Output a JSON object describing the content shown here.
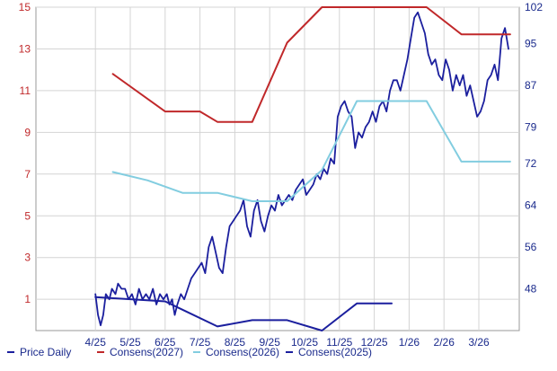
{
  "chart_data": {
    "type": "line",
    "x_ticks": [
      "4/25",
      "5/25",
      "6/25",
      "7/25",
      "8/25",
      "9/25",
      "10/25",
      "11/25",
      "12/25",
      "1/26",
      "2/26",
      "3/26"
    ],
    "y_left": {
      "ticks": [
        1,
        3,
        5,
        7,
        9,
        11,
        13,
        15
      ],
      "range": [
        -0.5,
        15
      ]
    },
    "y_right": {
      "ticks": [
        48,
        56,
        64,
        72,
        79,
        87,
        95,
        102
      ],
      "range": [
        40,
        102
      ]
    },
    "series": [
      {
        "name": "Price Daily",
        "axis": "right",
        "color": "#1b1f9e",
        "points": [
          [
            3.0,
            47
          ],
          [
            3.15,
            43
          ],
          [
            3.3,
            41
          ],
          [
            3.45,
            43
          ],
          [
            3.6,
            47
          ],
          [
            3.8,
            46
          ],
          [
            3.95,
            48
          ],
          [
            4.15,
            47
          ],
          [
            4.3,
            49
          ],
          [
            4.5,
            48
          ],
          [
            4.7,
            48
          ],
          [
            4.9,
            46
          ],
          [
            5.1,
            47
          ],
          [
            5.3,
            45
          ],
          [
            5.5,
            48
          ],
          [
            5.7,
            46
          ],
          [
            5.9,
            47
          ],
          [
            6.1,
            46
          ],
          [
            6.3,
            48
          ],
          [
            6.5,
            45
          ],
          [
            6.7,
            47
          ],
          [
            6.9,
            46
          ],
          [
            7.1,
            47
          ],
          [
            7.25,
            45
          ],
          [
            7.4,
            46
          ],
          [
            7.55,
            43
          ],
          [
            7.7,
            45
          ],
          [
            7.9,
            47
          ],
          [
            8.1,
            46
          ],
          [
            8.3,
            48
          ],
          [
            8.5,
            50
          ],
          [
            8.7,
            51
          ],
          [
            8.9,
            52
          ],
          [
            9.1,
            53
          ],
          [
            9.3,
            51
          ],
          [
            9.5,
            56
          ],
          [
            9.7,
            58
          ],
          [
            9.9,
            55
          ],
          [
            10.1,
            52
          ],
          [
            10.3,
            51
          ],
          [
            10.5,
            56
          ],
          [
            10.7,
            60
          ],
          [
            10.9,
            61
          ],
          [
            11.1,
            62
          ],
          [
            11.3,
            63
          ],
          [
            11.5,
            65
          ],
          [
            11.7,
            60
          ],
          [
            11.9,
            58
          ],
          [
            12.1,
            63
          ],
          [
            12.3,
            65
          ],
          [
            12.5,
            61
          ],
          [
            12.7,
            59
          ],
          [
            12.9,
            62
          ],
          [
            13.1,
            64
          ],
          [
            13.3,
            63
          ],
          [
            13.5,
            66
          ],
          [
            13.7,
            64
          ],
          [
            13.9,
            65
          ],
          [
            14.1,
            66
          ],
          [
            14.3,
            65
          ],
          [
            14.5,
            67
          ],
          [
            14.7,
            68
          ],
          [
            14.9,
            69
          ],
          [
            15.1,
            66
          ],
          [
            15.3,
            67
          ],
          [
            15.5,
            68
          ],
          [
            15.7,
            70
          ],
          [
            15.9,
            69
          ],
          [
            16.1,
            71
          ],
          [
            16.3,
            70
          ],
          [
            16.5,
            73
          ],
          [
            16.7,
            72
          ],
          [
            16.9,
            81
          ],
          [
            17.1,
            83
          ],
          [
            17.3,
            84
          ],
          [
            17.5,
            82
          ],
          [
            17.7,
            81
          ],
          [
            17.9,
            75
          ],
          [
            18.1,
            78
          ],
          [
            18.3,
            77
          ],
          [
            18.5,
            79
          ],
          [
            18.7,
            80
          ],
          [
            18.9,
            82
          ],
          [
            19.1,
            80
          ],
          [
            19.3,
            83
          ],
          [
            19.5,
            84
          ],
          [
            19.7,
            82
          ],
          [
            19.9,
            86
          ],
          [
            20.1,
            88
          ],
          [
            20.3,
            88
          ],
          [
            20.5,
            86
          ],
          [
            20.7,
            89
          ],
          [
            20.9,
            92
          ],
          [
            21.1,
            96
          ],
          [
            21.3,
            100
          ],
          [
            21.5,
            101
          ],
          [
            21.7,
            99
          ],
          [
            21.9,
            97
          ],
          [
            22.1,
            93
          ],
          [
            22.3,
            91
          ],
          [
            22.5,
            92
          ],
          [
            22.7,
            89
          ],
          [
            22.9,
            88
          ],
          [
            23.1,
            92
          ],
          [
            23.3,
            90
          ],
          [
            23.5,
            86
          ],
          [
            23.7,
            89
          ],
          [
            23.9,
            87
          ],
          [
            24.1,
            89
          ],
          [
            24.3,
            85
          ],
          [
            24.5,
            87
          ],
          [
            24.7,
            84
          ],
          [
            24.9,
            81
          ],
          [
            25.1,
            82
          ],
          [
            25.3,
            84
          ],
          [
            25.5,
            88
          ],
          [
            25.7,
            89
          ],
          [
            25.9,
            91
          ],
          [
            26.1,
            88
          ],
          [
            26.3,
            96
          ],
          [
            26.5,
            98
          ],
          [
            26.7,
            94
          ]
        ]
      },
      {
        "name": "Consens(2027)",
        "axis": "left",
        "color": "#c0282a",
        "points": [
          [
            4,
            11.8
          ],
          [
            7,
            10
          ],
          [
            9,
            10
          ],
          [
            10,
            9.5
          ],
          [
            12,
            9.5
          ],
          [
            14,
            13.3
          ],
          [
            16,
            15
          ],
          [
            20,
            15
          ],
          [
            22,
            15
          ],
          [
            24,
            13.7
          ],
          [
            26.8,
            13.7
          ]
        ]
      },
      {
        "name": "Consens(2026)",
        "axis": "left",
        "color": "#82cde0",
        "points": [
          [
            4,
            7.1
          ],
          [
            6,
            6.7
          ],
          [
            8,
            6.1
          ],
          [
            10,
            6.1
          ],
          [
            12,
            5.7
          ],
          [
            14,
            5.7
          ],
          [
            16,
            7.2
          ],
          [
            18,
            10.5
          ],
          [
            22,
            10.5
          ],
          [
            24,
            7.6
          ],
          [
            26.8,
            7.6
          ]
        ]
      },
      {
        "name": "Consens(2025)",
        "axis": "left",
        "color": "#1b1f9e",
        "points": [
          [
            3,
            1.1
          ],
          [
            7,
            0.9
          ],
          [
            8,
            0.5
          ],
          [
            10,
            -0.3
          ],
          [
            12,
            0
          ],
          [
            14,
            0
          ],
          [
            16,
            -0.5
          ],
          [
            18,
            0.8
          ],
          [
            20,
            0.8
          ]
        ]
      }
    ]
  },
  "legend": [
    {
      "label": "Price Daily",
      "color": "#1b1f9e"
    },
    {
      "label": "Consens(2027)",
      "color": "#c0282a"
    },
    {
      "label": "Consens(2026)",
      "color": "#82cde0"
    },
    {
      "label": "Consens(2025)",
      "color": "#1b1f9e"
    }
  ]
}
